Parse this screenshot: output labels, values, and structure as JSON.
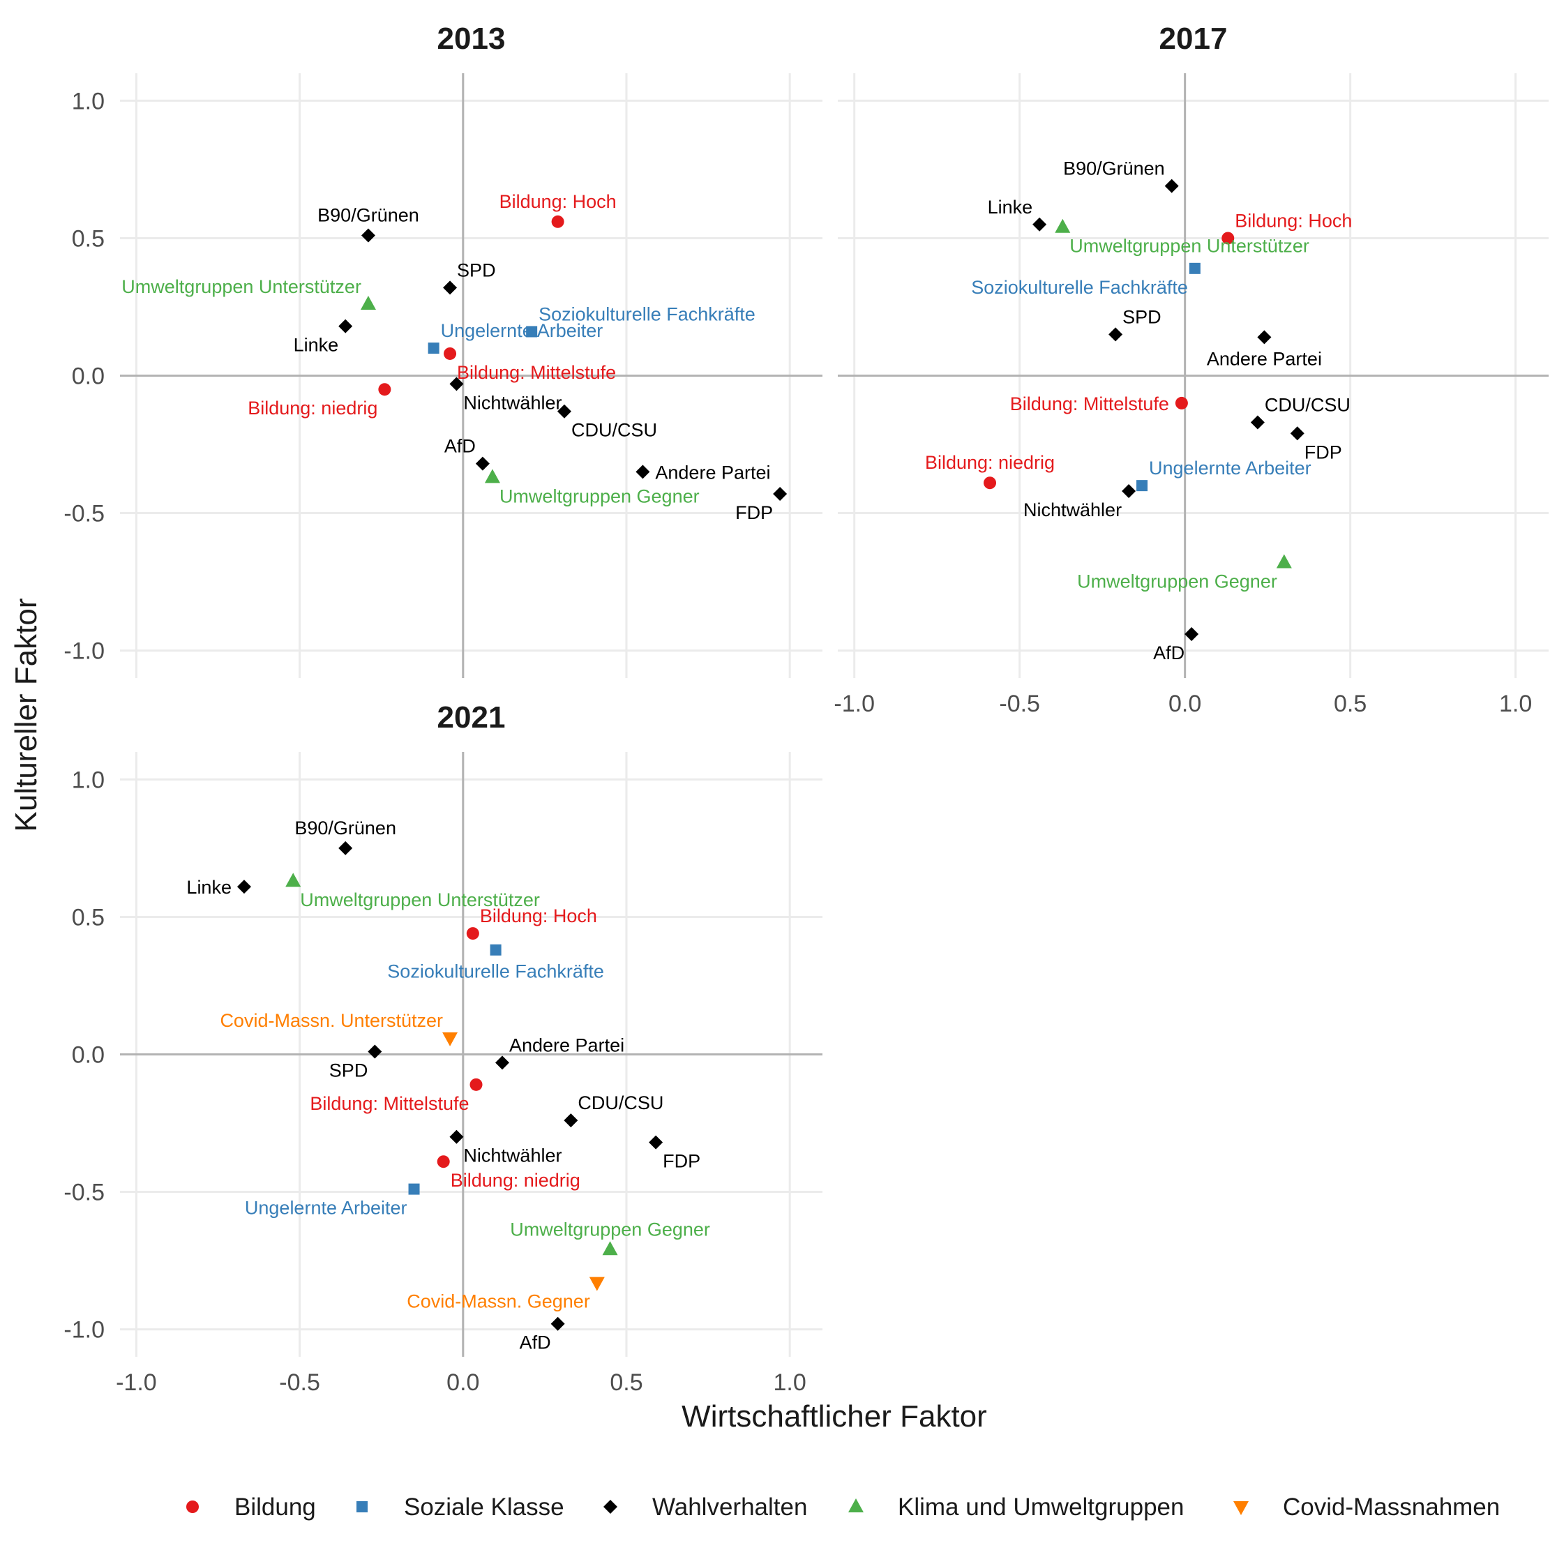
{
  "chart_data": {
    "type": "scatter",
    "xlabel": "Wirtschaftlicher Faktor",
    "ylabel": "Kultureller Faktor",
    "xlim": [
      -1.05,
      1.1
    ],
    "ylim": [
      -1.1,
      1.1
    ],
    "xticks": [
      -1.0,
      -0.5,
      0.0,
      0.5,
      1.0
    ],
    "yticks": [
      -1.0,
      -0.5,
      0.0,
      0.5,
      1.0
    ],
    "xtick_labels": [
      "-1.0",
      "-0.5",
      "0.0",
      "0.5",
      "1.0"
    ],
    "ytick_labels": [
      "-1.0",
      "-0.5",
      "0.0",
      "0.5",
      "1.0"
    ],
    "grid": true,
    "legend_placement": "bottom",
    "categories": [
      {
        "key": "bildung",
        "name": "Bildung",
        "color": "#e41a1c",
        "shape": "circle"
      },
      {
        "key": "klasse",
        "name": "Soziale Klasse",
        "color": "#377eb8",
        "shape": "square"
      },
      {
        "key": "wahl",
        "name": "Wahlverhalten",
        "color": "#000000",
        "shape": "diamond"
      },
      {
        "key": "klima",
        "name": "Klima und Umweltgruppen",
        "color": "#4daf4a",
        "shape": "triangle-up"
      },
      {
        "key": "covid",
        "name": "Covid-Massnahmen",
        "color": "#ff7f00",
        "shape": "triangle-down"
      }
    ],
    "panels": [
      {
        "title": "2013",
        "points": [
          {
            "label": "Bildung: Hoch",
            "category": "bildung",
            "x": 0.29,
            "y": 0.56,
            "label_anchor": "above"
          },
          {
            "label": "Bildung: Mittelstufe",
            "category": "bildung",
            "x": -0.04,
            "y": 0.08,
            "label_anchor": "below-right"
          },
          {
            "label": "Bildung: niedrig",
            "category": "bildung",
            "x": -0.24,
            "y": -0.05,
            "label_anchor": "below-left"
          },
          {
            "label": "Soziokulturelle Fachkräfte",
            "category": "klasse",
            "x": 0.21,
            "y": 0.16,
            "label_anchor": "above-right"
          },
          {
            "label": "Ungelernte Arbeiter",
            "category": "klasse",
            "x": -0.09,
            "y": 0.1,
            "label_anchor": "above-right"
          },
          {
            "label": "B90/Grünen",
            "category": "wahl",
            "x": -0.29,
            "y": 0.51,
            "label_anchor": "above"
          },
          {
            "label": "SPD",
            "category": "wahl",
            "x": -0.04,
            "y": 0.32,
            "label_anchor": "above-right"
          },
          {
            "label": "Linke",
            "category": "wahl",
            "x": -0.36,
            "y": 0.18,
            "label_anchor": "below-left"
          },
          {
            "label": "Nichtwähler",
            "category": "wahl",
            "x": -0.02,
            "y": -0.03,
            "label_anchor": "below-right"
          },
          {
            "label": "CDU/CSU",
            "category": "wahl",
            "x": 0.31,
            "y": -0.13,
            "label_anchor": "below-right"
          },
          {
            "label": "AfD",
            "category": "wahl",
            "x": 0.06,
            "y": -0.32,
            "label_anchor": "above-left"
          },
          {
            "label": "Andere Partei",
            "category": "wahl",
            "x": 0.55,
            "y": -0.35,
            "label_anchor": "right"
          },
          {
            "label": "FDP",
            "category": "wahl",
            "x": 0.97,
            "y": -0.43,
            "label_anchor": "below-left"
          },
          {
            "label": "Umweltgruppen Unterstützer",
            "category": "klima",
            "x": -0.29,
            "y": 0.26,
            "label_anchor": "above-left"
          },
          {
            "label": "Umweltgruppen Gegner",
            "category": "klima",
            "x": 0.09,
            "y": -0.37,
            "label_anchor": "below-right"
          }
        ]
      },
      {
        "title": "2017",
        "points": [
          {
            "label": "Bildung: Hoch",
            "category": "bildung",
            "x": 0.13,
            "y": 0.5,
            "label_anchor": "above-right"
          },
          {
            "label": "Bildung: Mittelstufe",
            "category": "bildung",
            "x": -0.01,
            "y": -0.1,
            "label_anchor": "left"
          },
          {
            "label": "Bildung: niedrig",
            "category": "bildung",
            "x": -0.59,
            "y": -0.39,
            "label_anchor": "above"
          },
          {
            "label": "Soziokulturelle Fachkräfte",
            "category": "klasse",
            "x": 0.03,
            "y": 0.39,
            "label_anchor": "below-left"
          },
          {
            "label": "Ungelernte Arbeiter",
            "category": "klasse",
            "x": -0.13,
            "y": -0.4,
            "label_anchor": "above-right"
          },
          {
            "label": "B90/Grünen",
            "category": "wahl",
            "x": -0.04,
            "y": 0.69,
            "label_anchor": "above-left"
          },
          {
            "label": "Linke",
            "category": "wahl",
            "x": -0.44,
            "y": 0.55,
            "label_anchor": "above-left"
          },
          {
            "label": "SPD",
            "category": "wahl",
            "x": -0.21,
            "y": 0.15,
            "label_anchor": "above-right"
          },
          {
            "label": "Andere Partei",
            "category": "wahl",
            "x": 0.24,
            "y": 0.14,
            "label_anchor": "below"
          },
          {
            "label": "CDU/CSU",
            "category": "wahl",
            "x": 0.22,
            "y": -0.17,
            "label_anchor": "above-right"
          },
          {
            "label": "FDP",
            "category": "wahl",
            "x": 0.34,
            "y": -0.21,
            "label_anchor": "below-right"
          },
          {
            "label": "Nichtwähler",
            "category": "wahl",
            "x": -0.17,
            "y": -0.42,
            "label_anchor": "below-left"
          },
          {
            "label": "AfD",
            "category": "wahl",
            "x": 0.02,
            "y": -0.94,
            "label_anchor": "below-left"
          },
          {
            "label": "Umweltgruppen Unterstützer",
            "category": "klima",
            "x": -0.37,
            "y": 0.54,
            "label_anchor": "below-right"
          },
          {
            "label": "Umweltgruppen Gegner",
            "category": "klima",
            "x": 0.3,
            "y": -0.68,
            "label_anchor": "below-left"
          }
        ]
      },
      {
        "title": "2021",
        "points": [
          {
            "label": "Bildung: Hoch",
            "category": "bildung",
            "x": 0.03,
            "y": 0.44,
            "label_anchor": "above-right"
          },
          {
            "label": "Bildung: Mittelstufe",
            "category": "bildung",
            "x": 0.04,
            "y": -0.11,
            "label_anchor": "below-left"
          },
          {
            "label": "Bildung: niedrig",
            "category": "bildung",
            "x": -0.06,
            "y": -0.39,
            "label_anchor": "below-right"
          },
          {
            "label": "Soziokulturelle Fachkräfte",
            "category": "klasse",
            "x": 0.1,
            "y": 0.38,
            "label_anchor": "below"
          },
          {
            "label": "Ungelernte Arbeiter",
            "category": "klasse",
            "x": -0.15,
            "y": -0.49,
            "label_anchor": "below-left"
          },
          {
            "label": "B90/Grünen",
            "category": "wahl",
            "x": -0.36,
            "y": 0.75,
            "label_anchor": "above"
          },
          {
            "label": "Linke",
            "category": "wahl",
            "x": -0.67,
            "y": 0.61,
            "label_anchor": "left"
          },
          {
            "label": "SPD",
            "category": "wahl",
            "x": -0.27,
            "y": 0.01,
            "label_anchor": "below-left"
          },
          {
            "label": "Andere Partei",
            "category": "wahl",
            "x": 0.12,
            "y": -0.03,
            "label_anchor": "above-right"
          },
          {
            "label": "CDU/CSU",
            "category": "wahl",
            "x": 0.33,
            "y": -0.24,
            "label_anchor": "above-right"
          },
          {
            "label": "FDP",
            "category": "wahl",
            "x": 0.59,
            "y": -0.32,
            "label_anchor": "below-right"
          },
          {
            "label": "Nichtwähler",
            "category": "wahl",
            "x": -0.02,
            "y": -0.3,
            "label_anchor": "below-right"
          },
          {
            "label": "AfD",
            "category": "wahl",
            "x": 0.29,
            "y": -0.98,
            "label_anchor": "below-left"
          },
          {
            "label": "Umweltgruppen Unterstützer",
            "category": "klima",
            "x": -0.52,
            "y": 0.63,
            "label_anchor": "below-right"
          },
          {
            "label": "Umweltgruppen Gegner",
            "category": "klima",
            "x": 0.45,
            "y": -0.71,
            "label_anchor": "above"
          },
          {
            "label": "Covid-Massn. Unterstützer",
            "category": "covid",
            "x": -0.04,
            "y": 0.06,
            "label_anchor": "above-left"
          },
          {
            "label": "Covid-Massn. Gegner",
            "category": "covid",
            "x": 0.41,
            "y": -0.83,
            "label_anchor": "below-left"
          }
        ]
      }
    ]
  }
}
